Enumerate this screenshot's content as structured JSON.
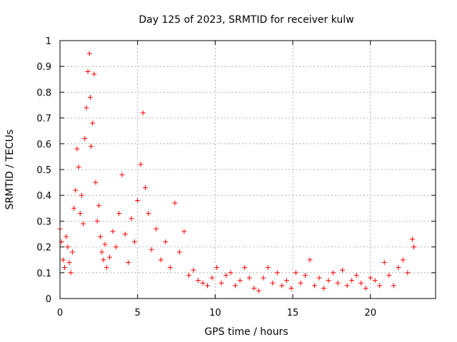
{
  "chart_data": {
    "type": "scatter",
    "title": "Day 125 of 2023, SRMTID for receiver kulw",
    "xlabel": "GPS time / hours",
    "ylabel": "SRMTID / TECUs",
    "xlim": [
      0,
      24.2
    ],
    "ylim": [
      0,
      1
    ],
    "grid": true,
    "marker": "plus",
    "color": "#ff0000",
    "x_ticks": [
      0,
      5,
      10,
      15,
      20
    ],
    "x_tick_labels": [
      "0",
      "5",
      "10",
      "15",
      "20"
    ],
    "y_ticks": [
      0,
      0.1,
      0.2,
      0.3,
      0.4,
      0.5,
      0.6,
      0.7,
      0.8,
      0.9,
      1
    ],
    "y_tick_labels": [
      "0",
      "0.1",
      "0.2",
      "0.3",
      "0.4",
      "0.5",
      "0.6",
      "0.7",
      "0.8",
      "0.9",
      "1"
    ],
    "series": [
      {
        "name": "SRMTID",
        "x": [
          0.0,
          0.1,
          0.2,
          0.3,
          0.4,
          0.5,
          0.6,
          0.7,
          0.8,
          0.9,
          1.0,
          1.1,
          1.2,
          1.3,
          1.4,
          1.5,
          1.6,
          1.7,
          1.8,
          1.9,
          1.95,
          2.0,
          2.1,
          2.2,
          2.3,
          2.4,
          2.5,
          2.6,
          2.7,
          2.8,
          2.9,
          3.0,
          3.2,
          3.4,
          3.6,
          3.8,
          4.0,
          4.2,
          4.4,
          4.6,
          4.8,
          5.0,
          5.2,
          5.35,
          5.5,
          5.7,
          5.9,
          6.2,
          6.5,
          6.8,
          7.1,
          7.4,
          7.7,
          8.0,
          8.3,
          8.6,
          8.9,
          9.2,
          9.5,
          9.8,
          10.1,
          10.4,
          10.7,
          11.0,
          11.3,
          11.6,
          11.9,
          12.2,
          12.5,
          12.8,
          13.1,
          13.4,
          13.7,
          14.0,
          14.3,
          14.6,
          14.9,
          15.2,
          15.5,
          15.8,
          16.1,
          16.4,
          16.7,
          17.0,
          17.3,
          17.6,
          17.9,
          18.2,
          18.5,
          18.8,
          19.1,
          19.4,
          19.7,
          20.0,
          20.3,
          20.6,
          20.9,
          21.2,
          21.5,
          21.8,
          22.1,
          22.4,
          22.7,
          22.8
        ],
        "y": [
          0.27,
          0.22,
          0.15,
          0.12,
          0.24,
          0.2,
          0.14,
          0.1,
          0.18,
          0.35,
          0.42,
          0.58,
          0.51,
          0.33,
          0.4,
          0.29,
          0.62,
          0.74,
          0.88,
          0.95,
          0.78,
          0.59,
          0.68,
          0.87,
          0.45,
          0.3,
          0.36,
          0.24,
          0.18,
          0.15,
          0.21,
          0.12,
          0.16,
          0.26,
          0.2,
          0.33,
          0.48,
          0.25,
          0.14,
          0.31,
          0.22,
          0.38,
          0.52,
          0.72,
          0.43,
          0.33,
          0.19,
          0.27,
          0.15,
          0.22,
          0.12,
          0.37,
          0.18,
          0.26,
          0.09,
          0.11,
          0.07,
          0.06,
          0.05,
          0.08,
          0.12,
          0.06,
          0.09,
          0.1,
          0.05,
          0.07,
          0.12,
          0.08,
          0.04,
          0.03,
          0.08,
          0.12,
          0.06,
          0.1,
          0.05,
          0.07,
          0.04,
          0.1,
          0.06,
          0.09,
          0.15,
          0.05,
          0.08,
          0.04,
          0.07,
          0.1,
          0.06,
          0.11,
          0.05,
          0.07,
          0.09,
          0.06,
          0.04,
          0.08,
          0.07,
          0.05,
          0.14,
          0.09,
          0.05,
          0.12,
          0.15,
          0.1,
          0.23,
          0.2
        ]
      }
    ]
  }
}
